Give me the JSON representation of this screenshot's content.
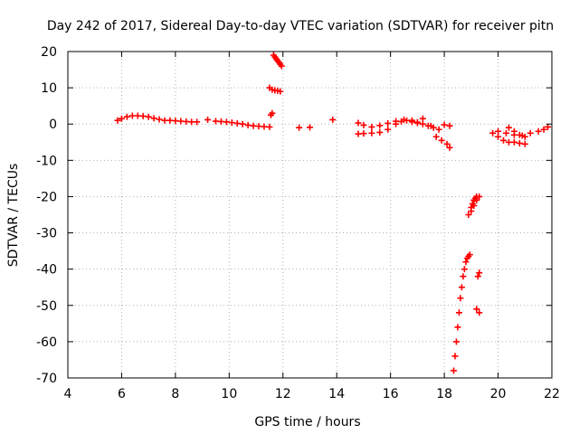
{
  "chart_data": {
    "type": "scatter",
    "title": "Day 242 of 2017, Sidereal Day-to-day VTEC variation (SDTVAR) for receiver pitn",
    "xlabel": "GPS time / hours",
    "ylabel": "SDTVAR / TECUs",
    "xlim": [
      4,
      22
    ],
    "ylim": [
      -70,
      20
    ],
    "xticks": [
      "4",
      "6",
      "8",
      "10",
      "12",
      "14",
      "16",
      "18",
      "20",
      "22"
    ],
    "yticks": [
      "20",
      "10",
      "0",
      "-10",
      "-20",
      "-30",
      "-40",
      "-50",
      "-60",
      "-70"
    ],
    "grid": true,
    "marker": "plus",
    "color": "#ff0000",
    "series": [
      {
        "name": "SDTVAR",
        "x": [
          5.85,
          6.0,
          6.2,
          6.4,
          6.6,
          6.8,
          7.0,
          7.2,
          7.4,
          7.6,
          7.8,
          8.0,
          8.2,
          8.4,
          8.6,
          8.8,
          9.2,
          9.5,
          9.7,
          9.9,
          10.1,
          10.3,
          10.5,
          10.7,
          10.9,
          11.1,
          11.3,
          11.5,
          11.55,
          11.6,
          11.5,
          11.6,
          11.7,
          11.8,
          11.9,
          11.65,
          11.7,
          11.75,
          11.8,
          11.85,
          11.9,
          11.95,
          12.6,
          13.0,
          13.85,
          14.8,
          15.0,
          15.3,
          15.6,
          15.9,
          16.2,
          16.5,
          16.8,
          17.0,
          17.2,
          17.4,
          17.6,
          17.8,
          18.0,
          18.2,
          14.8,
          15.0,
          15.3,
          15.6,
          15.9,
          16.2,
          16.4,
          16.6,
          16.8,
          17.0,
          17.2,
          17.5,
          17.7,
          17.9,
          18.1,
          18.2,
          18.35,
          18.4,
          18.45,
          18.5,
          18.55,
          18.6,
          18.65,
          18.7,
          18.75,
          18.8,
          18.85,
          18.9,
          18.95,
          19.0,
          19.05,
          19.1,
          19.15,
          19.2,
          18.9,
          19.0,
          19.1,
          19.2,
          19.3,
          19.25,
          19.3,
          19.2,
          19.3,
          19.8,
          20.0,
          20.2,
          20.4,
          20.6,
          20.8,
          21.0,
          20.0,
          20.3,
          20.6,
          20.9,
          21.2,
          21.5,
          21.7,
          21.85,
          20.4,
          20.6,
          20.8,
          21.0
        ],
        "y": [
          1.0,
          1.5,
          2.0,
          2.3,
          2.3,
          2.2,
          2.0,
          1.6,
          1.3,
          1.0,
          1.0,
          0.9,
          0.8,
          0.7,
          0.6,
          0.6,
          1.2,
          0.8,
          0.7,
          0.6,
          0.4,
          0.2,
          0.0,
          -0.3,
          -0.5,
          -0.6,
          -0.7,
          -0.8,
          2.5,
          3.0,
          10.0,
          9.5,
          9.3,
          9.2,
          9.0,
          19.0,
          18.5,
          18.0,
          17.5,
          17.0,
          16.5,
          16.0,
          -1.0,
          -0.9,
          1.2,
          0.3,
          -0.3,
          -0.8,
          -0.4,
          0.2,
          0.8,
          1.2,
          1.0,
          0.5,
          0.0,
          -0.5,
          -1.0,
          -1.5,
          -0.2,
          -0.5,
          -2.7,
          -2.6,
          -2.5,
          -2.3,
          -1.5,
          0.0,
          0.7,
          1.0,
          0.6,
          0.3,
          1.5,
          -0.5,
          -3.5,
          -4.5,
          -5.5,
          -6.5,
          -68.0,
          -64.0,
          -60.0,
          -56.0,
          -52.0,
          -48.0,
          -45.0,
          -42.0,
          -40.0,
          -38.0,
          -37.0,
          -36.5,
          -36.0,
          -23.0,
          -22.0,
          -21.0,
          -20.5,
          -20.0,
          -25.0,
          -24.0,
          -22.5,
          -21.0,
          -20.0,
          -42.0,
          -41.0,
          -51.0,
          -52.0,
          -2.5,
          -3.5,
          -4.5,
          -5.0,
          -5.0,
          -5.3,
          -5.5,
          -2.0,
          -2.5,
          -3.0,
          -3.2,
          -2.5,
          -2.0,
          -1.5,
          -0.8,
          -1.0,
          -2.0,
          -3.0,
          -3.5
        ]
      }
    ]
  }
}
